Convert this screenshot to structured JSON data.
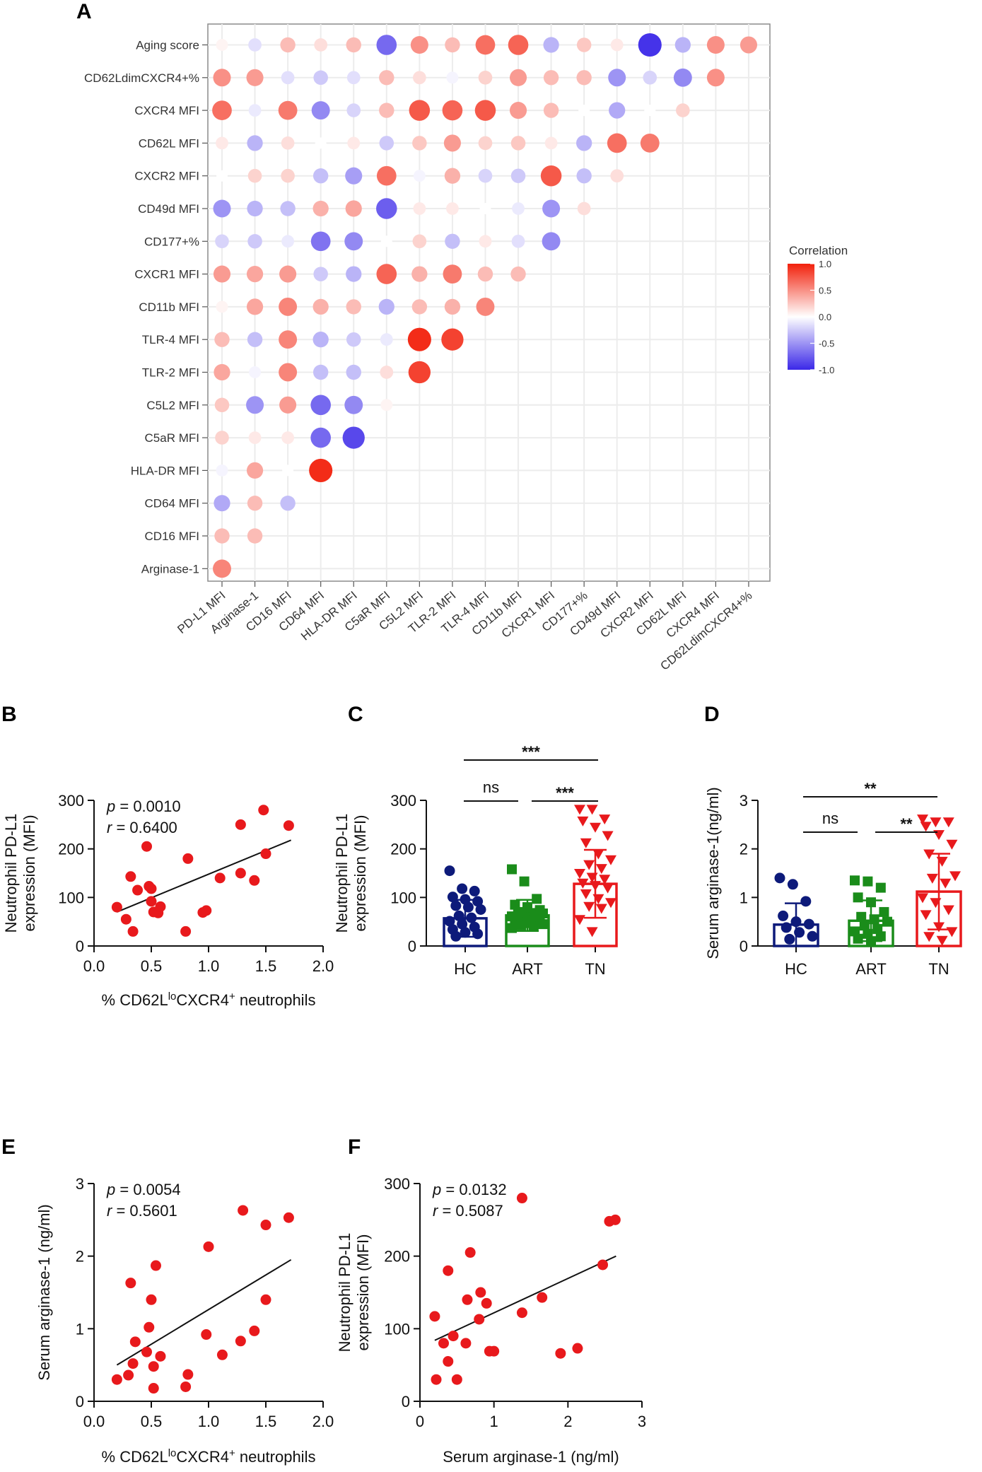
{
  "chart_data": [
    {
      "panel": "A",
      "type": "heatmap",
      "title": "",
      "row_labels": [
        "Aging score",
        "CD62LdimCXCR4+%",
        "CXCR4 MFI",
        "CD62L MFI",
        "CXCR2 MFI",
        "CD49d MFI",
        "CD177+%",
        "CXCR1 MFI",
        "CD11b MFI",
        "TLR-4 MFI",
        "TLR-2 MFI",
        "C5L2 MFI",
        "C5aR MFI",
        "HLA-DR MFI",
        "CD64 MFI",
        "CD16 MFI",
        "Arginase-1"
      ],
      "col_labels": [
        "PD-L1 MFI",
        "Arginase-1",
        "CD16 MFI",
        "CD64 MFI",
        "HLA-DR MFI",
        "C5aR MFI",
        "C5L2 MFI",
        "TLR-2 MFI",
        "TLR-4 MFI",
        "CD11b MFI",
        "CXCR1 MFI",
        "CD177+%",
        "CD49d MFI",
        "CXCR2 MFI",
        "CD62L MFI",
        "CXCR4 MFI",
        "CD62LdimCXCR4+%"
      ],
      "values": [
        [
          0.05,
          -0.15,
          0.3,
          0.15,
          0.3,
          -0.7,
          0.5,
          0.3,
          0.65,
          0.7,
          -0.35,
          0.25,
          0.1,
          -0.95,
          -0.35,
          0.5,
          0.45
        ],
        [
          0.5,
          0.45,
          -0.15,
          -0.25,
          -0.15,
          0.3,
          0.15,
          -0.05,
          0.2,
          0.45,
          0.3,
          0.3,
          -0.5,
          -0.2,
          -0.55,
          0.5
        ],
        [
          0.65,
          -0.1,
          0.6,
          -0.55,
          -0.2,
          0.3,
          0.75,
          0.7,
          0.75,
          0.45,
          0.3,
          0.0,
          -0.4,
          0.0,
          0.2
        ],
        [
          0.1,
          -0.35,
          0.15,
          0.0,
          0.1,
          -0.25,
          0.25,
          0.45,
          0.2,
          0.25,
          0.1,
          -0.35,
          0.65,
          0.6
        ],
        [
          0.0,
          0.2,
          0.2,
          -0.3,
          -0.45,
          0.65,
          -0.05,
          0.35,
          -0.2,
          -0.25,
          0.75,
          -0.3,
          0.15
        ],
        [
          -0.5,
          -0.35,
          -0.3,
          0.35,
          0.4,
          -0.75,
          0.1,
          0.1,
          0.0,
          -0.1,
          -0.5,
          0.15
        ],
        [
          -0.2,
          -0.25,
          -0.1,
          -0.65,
          -0.55,
          0.0,
          0.2,
          -0.3,
          0.1,
          -0.15,
          -0.55
        ],
        [
          0.45,
          0.4,
          0.45,
          -0.25,
          -0.35,
          0.7,
          0.35,
          0.6,
          0.3,
          0.3
        ],
        [
          0.05,
          0.4,
          0.55,
          0.35,
          0.3,
          -0.35,
          0.3,
          0.35,
          0.55
        ],
        [
          0.3,
          -0.3,
          0.55,
          -0.35,
          -0.25,
          -0.1,
          0.95,
          0.85
        ],
        [
          0.4,
          -0.05,
          0.55,
          -0.3,
          -0.3,
          0.15,
          0.85
        ],
        [
          0.25,
          -0.5,
          0.45,
          -0.7,
          -0.55,
          0.05
        ],
        [
          0.2,
          0.1,
          0.1,
          -0.7,
          -0.85
        ],
        [
          -0.05,
          0.4,
          0.0,
          0.95
        ],
        [
          -0.4,
          0.3,
          -0.3
        ],
        [
          0.3,
          0.3
        ],
        [
          0.55
        ]
      ],
      "legend_title": "Correlation",
      "legend_ticks": [
        "1.0",
        "0.5",
        "0.0",
        "-0.5",
        "-1.0"
      ],
      "scale": [
        -1.0,
        1.0
      ],
      "colors": {
        "neg": "#3b28e8",
        "mid": "#ffffff",
        "pos": "#f2210c"
      }
    },
    {
      "panel": "B",
      "type": "scatter",
      "xlabel_parts": [
        "% CD62L",
        "lo",
        "CXCR4",
        "+",
        " neutrophils"
      ],
      "ylabel_lines": [
        "Neutrophil PD-L1",
        "expression (MFI)"
      ],
      "xlim": [
        0.0,
        2.0
      ],
      "ylim": [
        0,
        300
      ],
      "xticks": [
        "0.0",
        "0.5",
        "1.0",
        "1.5",
        "2.0"
      ],
      "yticks": [
        "0",
        "100",
        "200",
        "300"
      ],
      "points": [
        [
          0.2,
          80
        ],
        [
          0.28,
          55
        ],
        [
          0.32,
          143
        ],
        [
          0.34,
          30
        ],
        [
          0.38,
          115
        ],
        [
          0.46,
          205
        ],
        [
          0.48,
          123
        ],
        [
          0.5,
          118
        ],
        [
          0.5,
          92
        ],
        [
          0.52,
          70
        ],
        [
          0.56,
          68
        ],
        [
          0.58,
          81
        ],
        [
          0.8,
          30
        ],
        [
          0.82,
          180
        ],
        [
          0.95,
          69
        ],
        [
          0.98,
          73
        ],
        [
          1.1,
          140
        ],
        [
          1.28,
          150
        ],
        [
          1.28,
          250
        ],
        [
          1.4,
          135
        ],
        [
          1.48,
          280
        ],
        [
          1.5,
          190
        ],
        [
          1.7,
          248
        ]
      ],
      "fit": {
        "x": [
          0.2,
          1.72
        ],
        "y": [
          70,
          218
        ]
      },
      "stats": {
        "p_label": "p",
        "p_text": " = 0.0010",
        "r_label": "r",
        "r_text": " = 0.6400"
      },
      "point_color": "#e8191c"
    },
    {
      "panel": "C",
      "type": "bar",
      "categories": [
        "HC",
        "ART",
        "TN"
      ],
      "ylabel_lines": [
        "Neutrophil PD-L1",
        "expression (MFI)"
      ],
      "ylim": [
        0,
        300
      ],
      "yticks": [
        "0",
        "100",
        "200",
        "300"
      ],
      "means": [
        57,
        63,
        128
      ],
      "sd": [
        38,
        32,
        70
      ],
      "colors": [
        "#0d1a7a",
        "#1a8c1a",
        "#e8191c"
      ],
      "markers": [
        "circle",
        "square",
        "triangle"
      ],
      "points": [
        [
          155,
          118,
          113,
          101,
          96,
          92,
          83,
          80,
          75,
          62,
          58,
          51,
          45,
          39,
          34,
          28,
          25,
          20
        ],
        [
          158,
          133,
          97,
          85,
          80,
          74,
          70,
          68,
          67,
          65,
          63,
          61,
          59,
          57,
          55,
          53,
          51,
          49,
          47,
          45,
          43,
          40,
          37
        ],
        [
          282,
          282,
          262,
          258,
          245,
          228,
          213,
          190,
          178,
          168,
          160,
          150,
          142,
          138,
          130,
          125,
          120,
          108,
          98,
          90,
          82,
          78,
          55,
          30
        ]
      ],
      "significance": [
        {
          "label": "***",
          "from": 0,
          "to": 2
        },
        {
          "label": "ns",
          "from": 0,
          "to": 1
        },
        {
          "label": "***",
          "from": 1,
          "to": 2
        }
      ]
    },
    {
      "panel": "D",
      "type": "bar",
      "categories": [
        "HC",
        "ART",
        "TN"
      ],
      "ylabel_lines": [
        "Serum arginase-1(ng/ml)"
      ],
      "ylim": [
        0,
        3
      ],
      "yticks": [
        "0",
        "1",
        "2",
        "3"
      ],
      "means": [
        0.44,
        0.52,
        1.12
      ],
      "sd": [
        0.44,
        0.42,
        0.78
      ],
      "colors": [
        "#0d1a7a",
        "#1a8c1a",
        "#e8191c"
      ],
      "markers": [
        "circle",
        "square",
        "triangle"
      ],
      "points": [
        [
          1.4,
          1.27,
          0.92,
          0.62,
          0.5,
          0.45,
          0.38,
          0.28,
          0.2,
          0.14
        ],
        [
          1.35,
          1.33,
          1.2,
          1.0,
          0.9,
          0.7,
          0.6,
          0.55,
          0.5,
          0.42,
          0.35,
          0.3,
          0.25,
          0.2,
          0.15,
          0.1
        ],
        [
          2.62,
          2.56,
          2.56,
          2.47,
          2.3,
          2.1,
          1.9,
          1.75,
          1.45,
          1.4,
          1.3,
          1.0,
          0.9,
          0.75,
          0.65,
          0.4,
          0.3,
          0.2,
          0.12
        ]
      ],
      "significance": [
        {
          "label": "**",
          "from": 0,
          "to": 2
        },
        {
          "label": "ns",
          "from": 0,
          "to": 1
        },
        {
          "label": "**",
          "from": 1,
          "to": 2
        }
      ]
    },
    {
      "panel": "E",
      "type": "scatter",
      "xlabel_parts": [
        "% CD62L",
        "lo",
        "CXCR4",
        "+",
        " neutrophils"
      ],
      "ylabel_lines": [
        "Serum arginase-1 (ng/ml)"
      ],
      "xlim": [
        0.0,
        2.0
      ],
      "ylim": [
        0,
        3
      ],
      "xticks": [
        "0.0",
        "0.5",
        "1.0",
        "1.5",
        "2.0"
      ],
      "yticks": [
        "0",
        "1",
        "2",
        "3"
      ],
      "points": [
        [
          0.2,
          0.3
        ],
        [
          0.3,
          0.36
        ],
        [
          0.32,
          1.63
        ],
        [
          0.34,
          0.52
        ],
        [
          0.36,
          0.82
        ],
        [
          0.46,
          0.68
        ],
        [
          0.48,
          1.02
        ],
        [
          0.5,
          1.4
        ],
        [
          0.52,
          0.48
        ],
        [
          0.52,
          0.18
        ],
        [
          0.54,
          1.87
        ],
        [
          0.58,
          0.62
        ],
        [
          0.8,
          0.2
        ],
        [
          0.82,
          0.37
        ],
        [
          0.98,
          0.92
        ],
        [
          1.0,
          2.13
        ],
        [
          1.12,
          0.64
        ],
        [
          1.28,
          0.83
        ],
        [
          1.3,
          2.63
        ],
        [
          1.4,
          0.97
        ],
        [
          1.5,
          1.4
        ],
        [
          1.5,
          2.43
        ],
        [
          1.7,
          2.53
        ]
      ],
      "fit": {
        "x": [
          0.2,
          1.72
        ],
        "y": [
          0.5,
          1.95
        ]
      },
      "stats": {
        "p_label": "p",
        "p_text": " = 0.0054",
        "r_label": "r",
        "r_text": " = 0.5601"
      },
      "point_color": "#e8191c"
    },
    {
      "panel": "F",
      "type": "scatter",
      "xlabel_parts": [
        "Serum arginase-1 (ng/ml)"
      ],
      "ylabel_lines": [
        "Neutrophil PD-L1",
        "expression (MFI)"
      ],
      "xlim": [
        0,
        3
      ],
      "ylim": [
        0,
        300
      ],
      "xticks": [
        "0",
        "1",
        "2",
        "3"
      ],
      "yticks": [
        "0",
        "100",
        "200",
        "300"
      ],
      "points": [
        [
          0.2,
          117
        ],
        [
          0.22,
          30
        ],
        [
          0.32,
          80
        ],
        [
          0.38,
          55
        ],
        [
          0.38,
          180
        ],
        [
          0.45,
          90
        ],
        [
          0.5,
          30
        ],
        [
          0.62,
          80
        ],
        [
          0.64,
          140
        ],
        [
          0.68,
          205
        ],
        [
          0.8,
          113
        ],
        [
          0.82,
          150
        ],
        [
          0.9,
          135
        ],
        [
          0.94,
          69
        ],
        [
          1.0,
          69
        ],
        [
          1.38,
          122
        ],
        [
          1.38,
          280
        ],
        [
          1.65,
          143
        ],
        [
          1.9,
          66
        ],
        [
          2.13,
          73
        ],
        [
          2.47,
          188
        ],
        [
          2.56,
          248
        ],
        [
          2.64,
          250
        ]
      ],
      "fit": {
        "x": [
          0.2,
          2.65
        ],
        "y": [
          84,
          200
        ]
      },
      "stats": {
        "p_label": "p",
        "p_text": " = 0.0132",
        "r_label": "r",
        "r_text": " = 0.5087"
      },
      "point_color": "#e8191c"
    }
  ]
}
